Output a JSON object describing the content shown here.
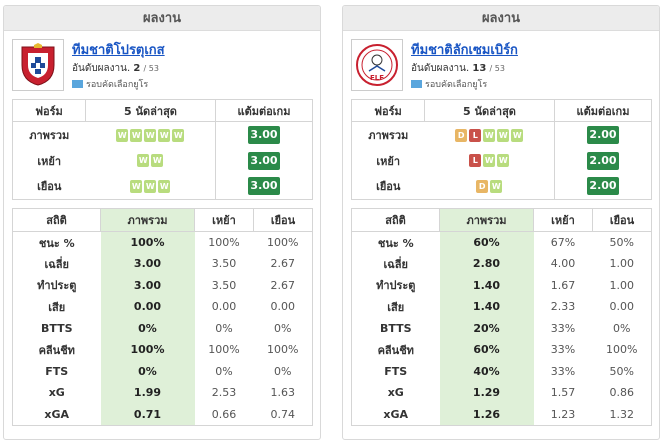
{
  "colors": {
    "win": "#b8dc7e",
    "draw": "#e8b665",
    "loss": "#c9514a",
    "ppg": "#2b8a49",
    "highlight": "#dff0d8",
    "link": "#1a56c4"
  },
  "panels": [
    {
      "header": "ผลงาน",
      "team_name": "ทีมชาติโปรตุเกส",
      "rank_label": "อันดับผลงาน.",
      "rank": "2",
      "rank_total": "/ 53",
      "competition": "รอบคัดเลือกยูโร",
      "logo_text": "",
      "form": {
        "headers": [
          "ฟอร์ม",
          "5 นัดล่าสุด",
          "แต้มต่อเกม"
        ],
        "rows": [
          {
            "label": "ภาพรวม",
            "results": [
              "W",
              "W",
              "W",
              "W",
              "W"
            ],
            "ppg": "3.00"
          },
          {
            "label": "เหย้า",
            "results": [
              "W",
              "W"
            ],
            "ppg": "3.00"
          },
          {
            "label": "เยือน",
            "results": [
              "W",
              "W",
              "W"
            ],
            "ppg": "3.00"
          }
        ]
      },
      "stats": {
        "headers": [
          "สถิติ",
          "ภาพรวม",
          "เหย้า",
          "เยือน"
        ],
        "rows": [
          {
            "label": "ชนะ %",
            "overall": "100%",
            "home": "100%",
            "away": "100%"
          },
          {
            "label": "เฉลี่ย",
            "overall": "3.00",
            "home": "3.50",
            "away": "2.67"
          },
          {
            "label": "ทำประตู",
            "overall": "3.00",
            "home": "3.50",
            "away": "2.67"
          },
          {
            "label": "เสีย",
            "overall": "0.00",
            "home": "0.00",
            "away": "0.00"
          },
          {
            "label": "BTTS",
            "overall": "0%",
            "home": "0%",
            "away": "0%"
          },
          {
            "label": "คลีนชีท",
            "overall": "100%",
            "home": "100%",
            "away": "100%"
          },
          {
            "label": "FTS",
            "overall": "0%",
            "home": "0%",
            "away": "0%"
          },
          {
            "label": "xG",
            "overall": "1.99",
            "home": "2.53",
            "away": "1.63"
          },
          {
            "label": "xGA",
            "overall": "0.71",
            "home": "0.66",
            "away": "0.74"
          }
        ]
      }
    },
    {
      "header": "ผลงาน",
      "team_name": "ทีมชาติลักเซมเบิร์ก",
      "rank_label": "อันดับผลงาน.",
      "rank": "13",
      "rank_total": "/ 53",
      "competition": "รอบคัดเลือกยูโร",
      "logo_text": "FLF",
      "form": {
        "headers": [
          "ฟอร์ม",
          "5 นัดล่าสุด",
          "แต้มต่อเกม"
        ],
        "rows": [
          {
            "label": "ภาพรวม",
            "results": [
              "D",
              "L",
              "W",
              "W",
              "W"
            ],
            "ppg": "2.00"
          },
          {
            "label": "เหย้า",
            "results": [
              "L",
              "W",
              "W"
            ],
            "ppg": "2.00"
          },
          {
            "label": "เยือน",
            "results": [
              "D",
              "W"
            ],
            "ppg": "2.00"
          }
        ]
      },
      "stats": {
        "headers": [
          "สถิติ",
          "ภาพรวม",
          "เหย้า",
          "เยือน"
        ],
        "rows": [
          {
            "label": "ชนะ %",
            "overall": "60%",
            "home": "67%",
            "away": "50%"
          },
          {
            "label": "เฉลี่ย",
            "overall": "2.80",
            "home": "4.00",
            "away": "1.00"
          },
          {
            "label": "ทำประตู",
            "overall": "1.40",
            "home": "1.67",
            "away": "1.00"
          },
          {
            "label": "เสีย",
            "overall": "1.40",
            "home": "2.33",
            "away": "0.00"
          },
          {
            "label": "BTTS",
            "overall": "20%",
            "home": "33%",
            "away": "0%"
          },
          {
            "label": "คลีนชีท",
            "overall": "60%",
            "home": "33%",
            "away": "100%"
          },
          {
            "label": "FTS",
            "overall": "40%",
            "home": "33%",
            "away": "50%"
          },
          {
            "label": "xG",
            "overall": "1.29",
            "home": "1.57",
            "away": "0.86"
          },
          {
            "label": "xGA",
            "overall": "1.26",
            "home": "1.23",
            "away": "1.32"
          }
        ]
      }
    }
  ]
}
